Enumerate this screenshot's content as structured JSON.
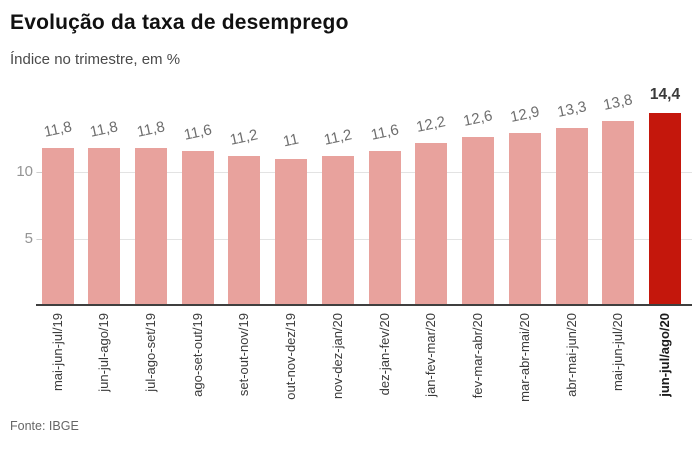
{
  "header": {
    "title": "Evolução da taxa de desemprego",
    "subtitle": "Índice no trimestre, em %"
  },
  "footer": {
    "source": "Fonte: IBGE"
  },
  "chart_data": {
    "type": "bar",
    "title": "Evolução da taxa de desemprego",
    "subtitle": "Índice no trimestre, em %",
    "categories": [
      "mai-jun-jul/19",
      "jun-jul-ago/19",
      "jul-ago-set/19",
      "ago-set-out/19",
      "set-out-nov/19",
      "out-nov-dez/19",
      "nov-dez-jan/20",
      "dez-jan-fev/20",
      "jan-fev-mar/20",
      "fev-mar-abr/20",
      "mar-abr-mai/20",
      "abr-mai-jun/20",
      "mai-jun-jul/20",
      "jun-jul/ago/20"
    ],
    "values": [
      11.8,
      11.8,
      11.8,
      11.6,
      11.2,
      11,
      11.2,
      11.6,
      12.2,
      12.6,
      12.9,
      13.3,
      13.8,
      14.4
    ],
    "value_labels": [
      "11,8",
      "11,8",
      "11,8",
      "11,6",
      "11,2",
      "11",
      "11,2",
      "11,6",
      "12,2",
      "12,6",
      "12,9",
      "13,3",
      "13,8",
      "14,4"
    ],
    "highlight_index": 13,
    "yticks": [
      {
        "label": "5",
        "value": 5
      },
      {
        "label": "10",
        "value": 10
      }
    ],
    "ylim": [
      0,
      15
    ],
    "grid": true,
    "legend": false,
    "colors": {
      "bar": "#e8a29d",
      "bar_highlight": "#c4170c",
      "grid_line": "#e3e3e3",
      "axis_line": "#3f3f3f",
      "value_label": "#6e6e6e",
      "value_label_highlight": "#3a3a3a",
      "category_label": "#3b3b3b",
      "category_label_highlight": "#1a1a1a",
      "ytick_label": "#949494",
      "title": "#111111",
      "subtitle": "#4a4a4a",
      "source": "#666666"
    },
    "source": "Fonte: IBGE"
  }
}
